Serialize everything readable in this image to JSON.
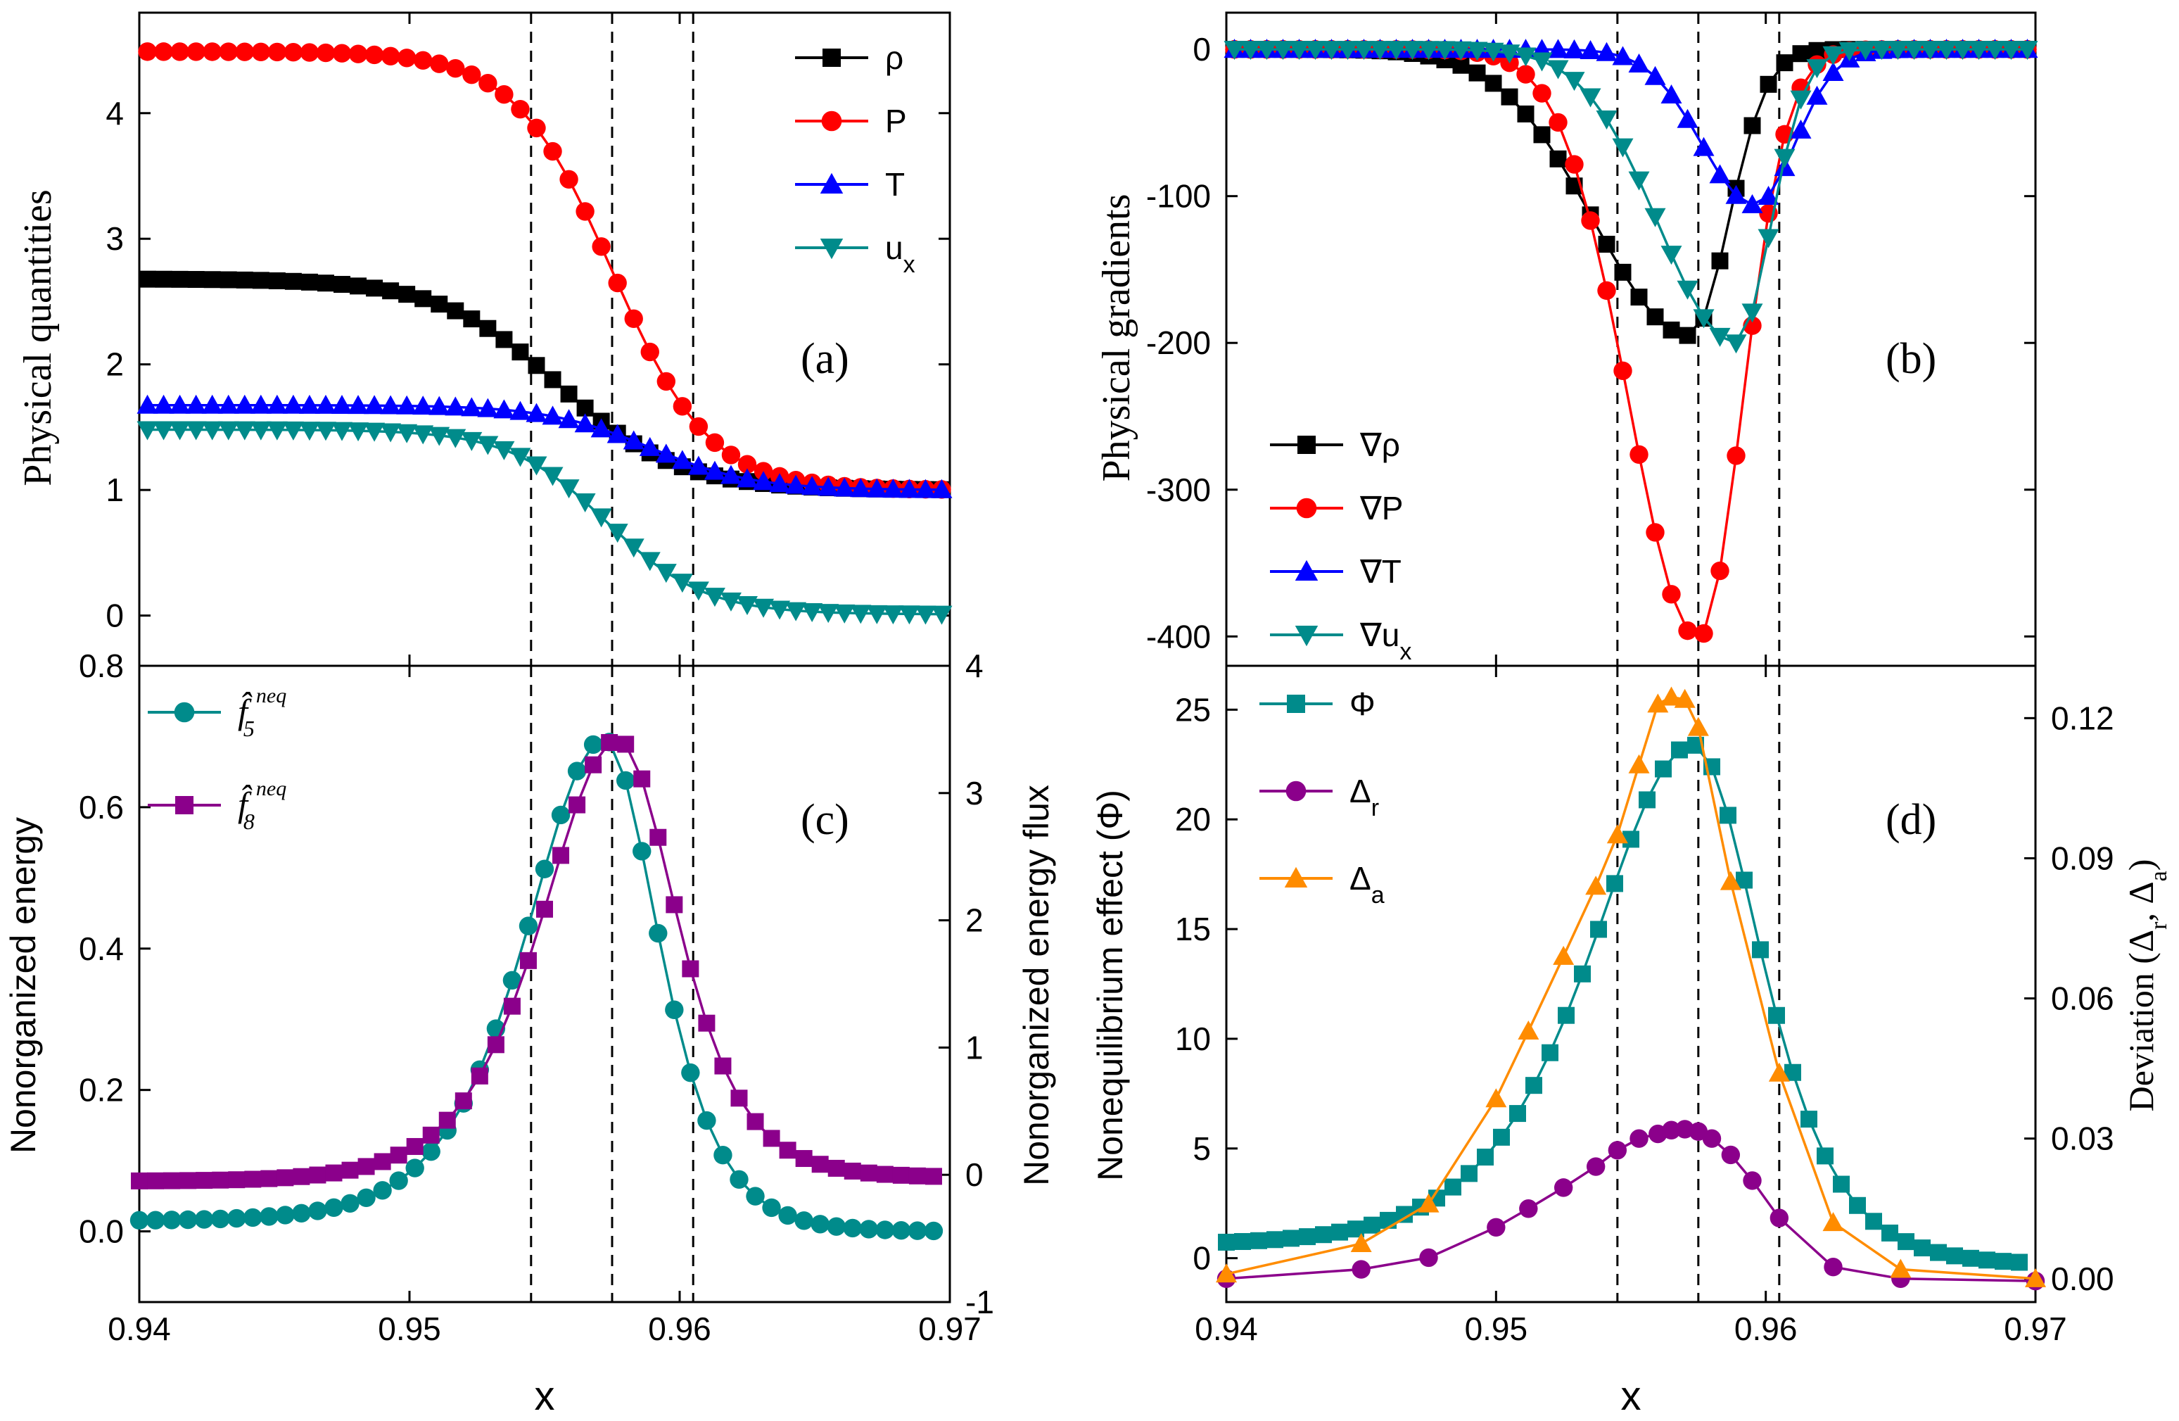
{
  "figure": {
    "xlabel": "x",
    "xticks": [
      "0.94",
      "0.95",
      "0.96",
      "0.97"
    ],
    "vlines": [
      0.9545,
      0.9575,
      0.9605
    ]
  },
  "colors": {
    "black": "#000000",
    "red": "#ff0000",
    "blue": "#0000ff",
    "teal": "#008b8b",
    "purple": "#8b008b",
    "orange": "#ff8c00"
  },
  "chart_data": [
    {
      "id": "a",
      "type": "line",
      "panel_label": "(a)",
      "ylabel": "Physical quantities",
      "xlim": [
        0.94,
        0.97
      ],
      "ylim": [
        -0.4,
        4.8
      ],
      "yticks": [
        0,
        1,
        2,
        3,
        4
      ],
      "legend_position": "top-right",
      "series": [
        {
          "name": "ρ",
          "sub": "",
          "color": "black",
          "marker": "square",
          "x0": 0.9403,
          "dx": 0.0006,
          "n": 50,
          "type": "sigmoid",
          "left": 2.68,
          "right": 1.0,
          "center": 0.9555,
          "width": 0.0022
        },
        {
          "name": "P",
          "sub": "",
          "color": "red",
          "marker": "circle",
          "x0": 0.9403,
          "dx": 0.0006,
          "n": 50,
          "type": "sigmoid",
          "left": 4.49,
          "right": 1.0,
          "center": 0.9575,
          "width": 0.0018
        },
        {
          "name": "T",
          "sub": "",
          "color": "blue",
          "marker": "triangle-up",
          "x0": 0.9403,
          "dx": 0.0006,
          "n": 50,
          "type": "sigmoid",
          "left": 1.675,
          "right": 1.0,
          "center": 0.9589,
          "width": 0.0019
        },
        {
          "name": "u",
          "sub": "x",
          "color": "teal",
          "marker": "triangle-down",
          "x0": 0.9403,
          "dx": 0.0006,
          "n": 50,
          "type": "sigmoid",
          "left": 1.48,
          "right": 0.01,
          "center": 0.9573,
          "width": 0.0018
        }
      ]
    },
    {
      "id": "b",
      "type": "line",
      "panel_label": "(b)",
      "ylabel": "Physical gradients",
      "xlim": [
        0.94,
        0.97
      ],
      "ylim": [
        -420,
        25
      ],
      "yticks": [
        0,
        -100,
        -200,
        -300,
        -400
      ],
      "legend_position": "bottom-left",
      "series": [
        {
          "name": "∇ρ",
          "sub": "",
          "color": "black",
          "marker": "square",
          "x0": 0.9403,
          "dx": 0.0006,
          "n": 50,
          "type": "dip",
          "min": -195,
          "center": 0.9572,
          "wl": 0.005,
          "wr": 0.002
        },
        {
          "name": "∇P",
          "sub": "",
          "color": "red",
          "marker": "circle",
          "x0": 0.9403,
          "dx": 0.0006,
          "n": 50,
          "type": "dip",
          "min": -401,
          "center": 0.9575,
          "wl": 0.0036,
          "wr": 0.0023
        },
        {
          "name": "∇T",
          "sub": "",
          "color": "blue",
          "marker": "triangle-up",
          "x0": 0.9403,
          "dx": 0.0006,
          "n": 50,
          "type": "dip",
          "min": -106,
          "center": 0.9596,
          "wl": 0.0028,
          "wr": 0.0021
        },
        {
          "name": "∇u",
          "sub": "x",
          "color": "teal",
          "marker": "triangle-down",
          "x0": 0.9403,
          "dx": 0.0006,
          "n": 50,
          "type": "dip",
          "min": -200,
          "center": 0.9589,
          "wl": 0.004,
          "wr": 0.0018
        }
      ]
    },
    {
      "id": "c",
      "type": "line",
      "panel_label": "(c)",
      "ylabel": "Nonorganized energy",
      "ylabel_right": "Nonorganized energy flux",
      "xlim": [
        0.94,
        0.97
      ],
      "ylim": [
        -0.1,
        0.8
      ],
      "yticks": [
        0.0,
        0.2,
        0.4,
        0.6,
        0.8
      ],
      "ylim_right": [
        -1,
        4
      ],
      "yticks_right": [
        -1,
        0,
        1,
        2,
        3,
        4
      ],
      "legend_position": "top-left",
      "series": [
        {
          "name": "f̂",
          "sub": "5",
          "sup": "neq",
          "color": "teal",
          "marker": "circle",
          "axis": "left",
          "x0": 0.94,
          "dx": 0.0006,
          "n": 50,
          "type": "peak",
          "base_l": 0.015,
          "base_r": 0.0,
          "peak": 0.696,
          "center": 0.9572,
          "wl": 0.0034,
          "wr": 0.0024
        },
        {
          "name": "f̂",
          "sub": "8",
          "sup": "neq",
          "color": "purple",
          "marker": "square",
          "axis": "right",
          "x0": 0.94,
          "dx": 0.0006,
          "n": 50,
          "type": "peak",
          "base_l": -0.05,
          "base_r": -0.02,
          "peak": 3.42,
          "center": 0.9577,
          "wl": 0.0033,
          "wr": 0.0026
        }
      ]
    },
    {
      "id": "d",
      "type": "line",
      "panel_label": "(d)",
      "ylabel": "Nonequilibrium effect (Φ)",
      "ylabel_right": "Deviation (Δr, Δa)",
      "xlim": [
        0.94,
        0.97
      ],
      "ylim": [
        -2,
        27
      ],
      "yticks": [
        0,
        5,
        10,
        15,
        20,
        25
      ],
      "ylim_right": [
        -0.005,
        0.1312
      ],
      "yticks_right": [
        "0.00",
        "0.03",
        "0.06",
        "0.09",
        "0.12"
      ],
      "legend_position": "top-left",
      "series": [
        {
          "name": "Φ",
          "sub": "",
          "color": "teal",
          "marker": "square",
          "axis": "left",
          "x0": 0.94,
          "dx": 0.0006,
          "n": 50,
          "type": "peak",
          "base_l": 0.6,
          "base_r": -0.3,
          "peak": 23.4,
          "center": 0.9573,
          "wl": 0.0044,
          "wr": 0.003
        },
        {
          "name": "Δ",
          "sub": "r",
          "color": "purple",
          "marker": "circle",
          "axis": "right",
          "type": "points",
          "x": [
            0.94,
            0.945,
            0.9475,
            0.95,
            0.9512,
            0.9525,
            0.9537,
            0.9545,
            0.9553,
            0.956,
            0.9565,
            0.957,
            0.9575,
            0.958,
            0.9587,
            0.9595,
            0.9605,
            0.9625,
            0.965,
            0.97
          ],
          "y": [
            0.0,
            0.002,
            0.0045,
            0.011,
            0.015,
            0.0195,
            0.024,
            0.0275,
            0.03,
            0.031,
            0.0318,
            0.032,
            0.0315,
            0.03,
            0.0265,
            0.021,
            0.013,
            0.0025,
            0.0,
            -0.0005
          ]
        },
        {
          "name": "Δ",
          "sub": "a",
          "color": "orange",
          "marker": "triangle-up",
          "axis": "right",
          "type": "points",
          "x": [
            0.94,
            0.945,
            0.9475,
            0.95,
            0.9512,
            0.9525,
            0.9537,
            0.9545,
            0.9553,
            0.956,
            0.9565,
            0.957,
            0.9575,
            0.9587,
            0.9605,
            0.9625,
            0.965,
            0.97
          ],
          "y": [
            0.001,
            0.0075,
            0.016,
            0.0385,
            0.053,
            0.069,
            0.084,
            0.095,
            0.11,
            0.123,
            0.1245,
            0.124,
            0.118,
            0.085,
            0.044,
            0.012,
            0.002,
            0.0
          ]
        }
      ]
    }
  ]
}
